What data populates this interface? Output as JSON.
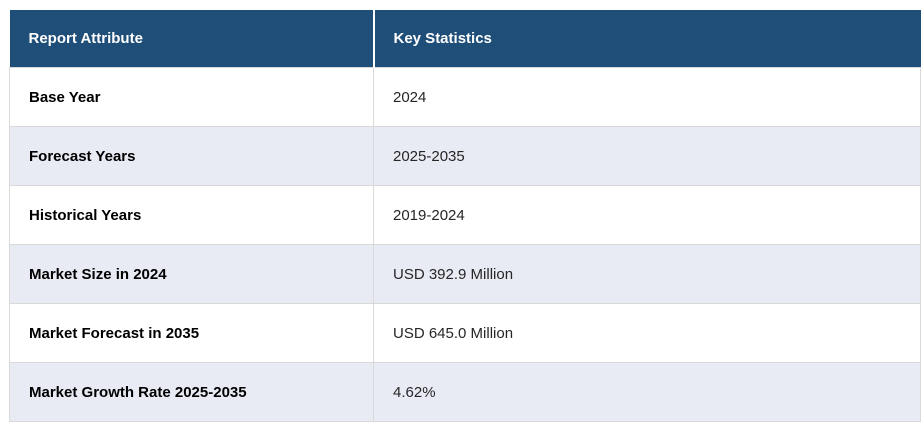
{
  "table": {
    "columns": [
      {
        "label": "Report Attribute"
      },
      {
        "label": "Key Statistics"
      }
    ],
    "rows": [
      {
        "attribute": "Base Year",
        "value": "2024"
      },
      {
        "attribute": "Forecast Years",
        "value": "2025-2035"
      },
      {
        "attribute": "Historical Years",
        "value": "2019-2024"
      },
      {
        "attribute": "Market Size in 2024",
        "value": "USD 392.9 Million"
      },
      {
        "attribute": "Market Forecast in 2035",
        "value": "USD 645.0 Million"
      },
      {
        "attribute": "Market Growth Rate 2025-2035",
        "value": "4.62%"
      }
    ],
    "colors": {
      "header_bg": "#1F4E79",
      "header_text": "#FFFFFF",
      "row_bg": "#FFFFFF",
      "row_alt_bg": "#E8EAF4",
      "border": "#D9D9D9",
      "attribute_text": "#000000",
      "value_text": "#262626"
    }
  }
}
